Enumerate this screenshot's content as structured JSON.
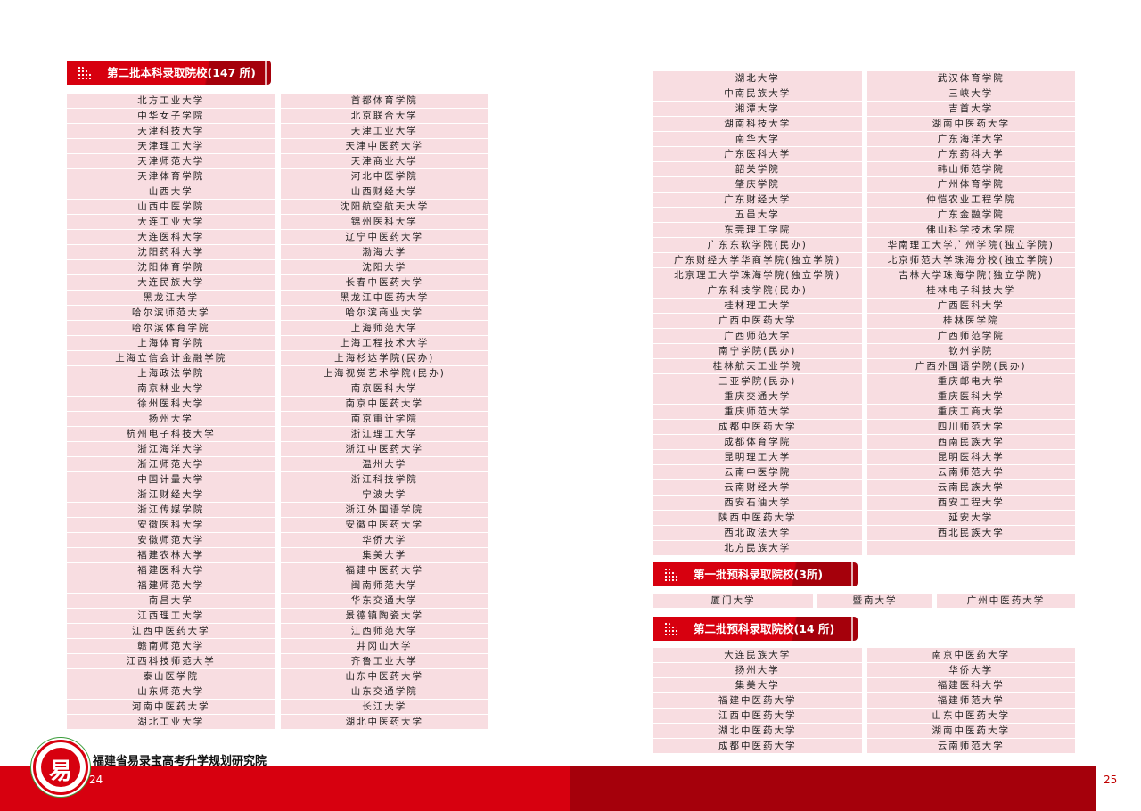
{
  "left": {
    "title": "第二批本科录取院校(147 所)",
    "rows": [
      [
        "北方工业大学",
        "首都体育学院"
      ],
      [
        "中华女子学院",
        "北京联合大学"
      ],
      [
        "天津科技大学",
        "天津工业大学"
      ],
      [
        "天津理工大学",
        "天津中医药大学"
      ],
      [
        "天津师范大学",
        "天津商业大学"
      ],
      [
        "天津体育学院",
        "河北中医学院"
      ],
      [
        "山西大学",
        "山西财经大学"
      ],
      [
        "山西中医学院",
        "沈阳航空航天大学"
      ],
      [
        "大连工业大学",
        "锦州医科大学"
      ],
      [
        "大连医科大学",
        "辽宁中医药大学"
      ],
      [
        "沈阳药科大学",
        "渤海大学"
      ],
      [
        "沈阳体育学院",
        "沈阳大学"
      ],
      [
        "大连民族大学",
        "长春中医药大学"
      ],
      [
        "黑龙江大学",
        "黑龙江中医药大学"
      ],
      [
        "哈尔滨师范大学",
        "哈尔滨商业大学"
      ],
      [
        "哈尔滨体育学院",
        "上海师范大学"
      ],
      [
        "上海体育学院",
        "上海工程技术大学"
      ],
      [
        "上海立信会计金融学院",
        "上海杉达学院(民办)"
      ],
      [
        "上海政法学院",
        "上海视觉艺术学院(民办)"
      ],
      [
        "南京林业大学",
        "南京医科大学"
      ],
      [
        "徐州医科大学",
        "南京中医药大学"
      ],
      [
        "扬州大学",
        "南京审计学院"
      ],
      [
        "杭州电子科技大学",
        "浙江理工大学"
      ],
      [
        "浙江海洋大学",
        "浙江中医药大学"
      ],
      [
        "浙江师范大学",
        "温州大学"
      ],
      [
        "中国计量大学",
        "浙江科技学院"
      ],
      [
        "浙江财经大学",
        "宁波大学"
      ],
      [
        "浙江传媒学院",
        "浙江外国语学院"
      ],
      [
        "安徽医科大学",
        "安徽中医药大学"
      ],
      [
        "安徽师范大学",
        "华侨大学"
      ],
      [
        "福建农林大学",
        "集美大学"
      ],
      [
        "福建医科大学",
        "福建中医药大学"
      ],
      [
        "福建师范大学",
        "闽南师范大学"
      ],
      [
        "南昌大学",
        "华东交通大学"
      ],
      [
        "江西理工大学",
        "景德镇陶瓷大学"
      ],
      [
        "江西中医药大学",
        "江西师范大学"
      ],
      [
        "赣南师范大学",
        "井冈山大学"
      ],
      [
        "江西科技师范大学",
        "齐鲁工业大学"
      ],
      [
        "泰山医学院",
        "山东中医药大学"
      ],
      [
        "山东师范大学",
        "山东交通学院"
      ],
      [
        "河南中医药大学",
        "长江大学"
      ],
      [
        "湖北工业大学",
        "湖北中医药大学"
      ]
    ]
  },
  "right": {
    "rows": [
      [
        "湖北大学",
        "武汉体育学院"
      ],
      [
        "中南民族大学",
        "三峡大学"
      ],
      [
        "湘潭大学",
        "吉首大学"
      ],
      [
        "湖南科技大学",
        "湖南中医药大学"
      ],
      [
        "南华大学",
        "广东海洋大学"
      ],
      [
        "广东医科大学",
        "广东药科大学"
      ],
      [
        "韶关学院",
        "韩山师范学院"
      ],
      [
        "肇庆学院",
        "广州体育学院"
      ],
      [
        "广东财经大学",
        "仲恺农业工程学院"
      ],
      [
        "五邑大学",
        "广东金融学院"
      ],
      [
        "东莞理工学院",
        "佛山科学技术学院"
      ],
      [
        "广东东软学院(民办)",
        "华南理工大学广州学院(独立学院)"
      ],
      [
        "广东财经大学华商学院(独立学院)",
        "北京师范大学珠海分校(独立学院)"
      ],
      [
        "北京理工大学珠海学院(独立学院)",
        "吉林大学珠海学院(独立学院)"
      ],
      [
        "广东科技学院(民办)",
        "桂林电子科技大学"
      ],
      [
        "桂林理工大学",
        "广西医科大学"
      ],
      [
        "广西中医药大学",
        "桂林医学院"
      ],
      [
        "广西师范大学",
        "广西师范学院"
      ],
      [
        "南宁学院(民办)",
        "钦州学院"
      ],
      [
        "桂林航天工业学院",
        "广西外国语学院(民办)"
      ],
      [
        "三亚学院(民办)",
        "重庆邮电大学"
      ],
      [
        "重庆交通大学",
        "重庆医科大学"
      ],
      [
        "重庆师范大学",
        "重庆工商大学"
      ],
      [
        "成都中医药大学",
        "四川师范大学"
      ],
      [
        "成都体育学院",
        "西南民族大学"
      ],
      [
        "昆明理工大学",
        "昆明医科大学"
      ],
      [
        "云南中医学院",
        "云南师范大学"
      ],
      [
        "云南财经大学",
        "云南民族大学"
      ],
      [
        "西安石油大学",
        "西安工程大学"
      ],
      [
        "陕西中医药大学",
        "延安大学"
      ],
      [
        "西北政法大学",
        "西北民族大学"
      ],
      [
        "北方民族大学",
        ""
      ]
    ]
  },
  "prep1": {
    "title": "第一批预科录取院校(3所)",
    "schools": [
      "厦门大学",
      "暨南大学",
      "广州中医药大学"
    ]
  },
  "prep2": {
    "title": "第二批预科录取院校(14 所)",
    "rows": [
      [
        "大连民族大学",
        "南京中医药大学"
      ],
      [
        "扬州大学",
        "华侨大学"
      ],
      [
        "集美大学",
        "福建医科大学"
      ],
      [
        "福建中医药大学",
        "福建师范大学"
      ],
      [
        "江西中医药大学",
        "山东中医药大学"
      ],
      [
        "湖北中医药大学",
        "湖南中医药大学"
      ],
      [
        "成都中医药大学",
        "云南师范大学"
      ]
    ]
  },
  "footer": {
    "institute": "福建省易录宝高考升学规划研究院",
    "logo_text": "福建省易录宝高考升学规划研究院",
    "page_left": "24",
    "page_right": "25"
  },
  "colors": {
    "brand_red": "#d7000f",
    "dark_red": "#a5000b",
    "cell_pink": "#f8dde1"
  }
}
